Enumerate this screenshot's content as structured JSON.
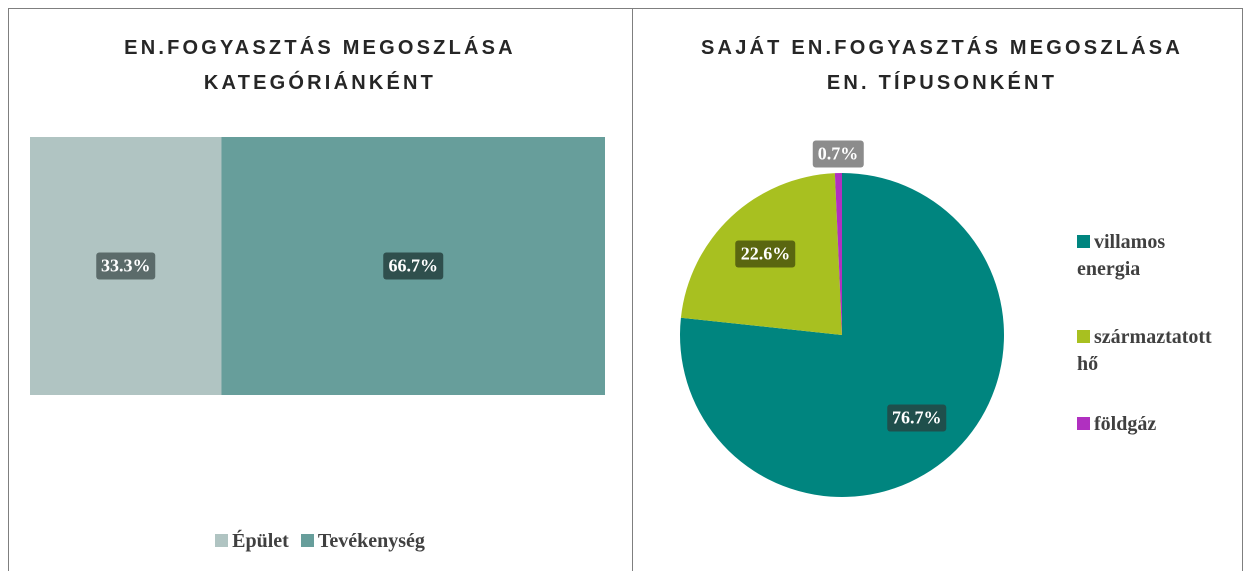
{
  "chart_data": [
    {
      "type": "stacked_bar",
      "title": "EN.FOGYASZTÁS MEGOSZLÁSA KATEGÓRIÁNKÉNT",
      "series": [
        {
          "name": "Épület",
          "color": "#b0c4c2",
          "values": [
            33.3
          ],
          "value_labels": [
            "33.3%"
          ]
        },
        {
          "name": "Tevékenység",
          "color": "#679e9b",
          "values": [
            66.7
          ],
          "value_labels": [
            "66.7%"
          ]
        }
      ],
      "xlim": [
        0,
        100
      ],
      "legend": "bottom"
    },
    {
      "type": "pie",
      "title": "SAJÁT EN.FOGYASZTÁS MEGOSZLÁSA EN. TÍPUSONKÉNT",
      "categories": [
        "villamos energia",
        "származtatott hő",
        "földgáz"
      ],
      "values": [
        76.7,
        22.6,
        0.7
      ],
      "value_labels": [
        "76.7%",
        "22.6%",
        "0.7%"
      ],
      "colors": [
        "#00857f",
        "#a8c020",
        "#b030c0"
      ],
      "legend": "right"
    }
  ]
}
